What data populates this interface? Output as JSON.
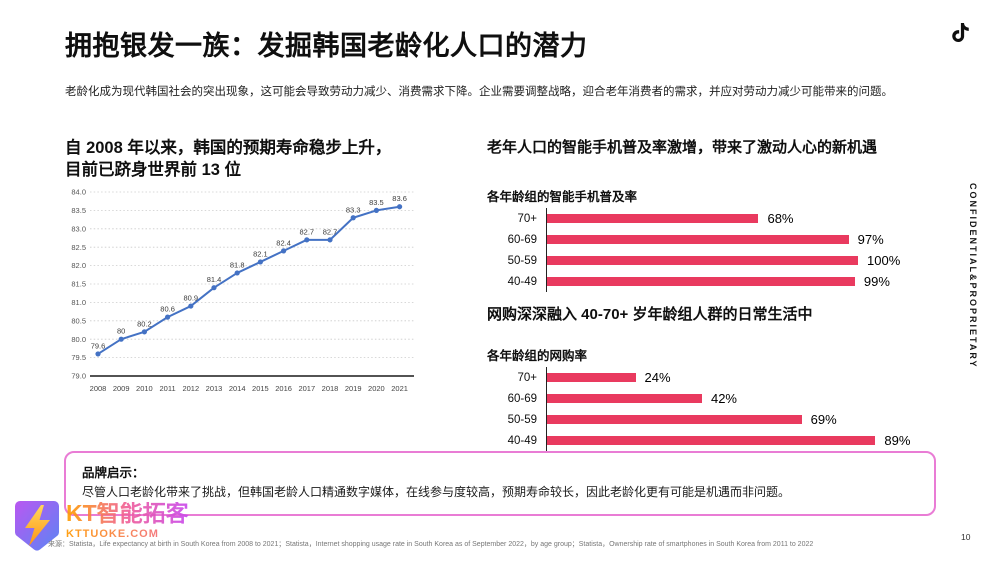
{
  "header": {
    "title": "拥抱银发一族：发掘韩国老龄化人口的潜力",
    "subtitle": "老龄化成为现代韩国社会的突出现象，这可能会导致劳动力减少、消费需求下降。企业需要调整战略，迎合老年消费者的需求，并应对劳动力减少可能带来的问题。"
  },
  "top_right": {
    "confidential": "CONFIDENTIAL&PROPRIETARY"
  },
  "left_section": {
    "title": "自 2008 年以来，韩国的预期寿命稳步上升，\n目前已跻身世界前 13 位"
  },
  "right_section": {
    "smartphone_title": "老年人口的智能手机普及率激增，带来了激动人心的新机遇",
    "smartphone_chart_label": "各年龄组的智能手机普及率",
    "shopping_title": "网购深深融入 40-70+ 岁年龄组人群的日常生活中",
    "shopping_chart_label": "各年龄组的网购率"
  },
  "callout": {
    "label": "品牌启示：",
    "text": "尽管人口老龄化带来了挑战，但韩国老龄人口精通数字媒体，在线参与度较高，预期寿命较长，因此老龄化更有可能是机遇而非问题。"
  },
  "footer": {
    "source": "来源：Statista，Life expectancy at birth in South Korea from 2008 to 2021；Statista，Internet shopping usage rate in South Korea as of September 2022，by age group；Statista，Ownership rate of smartphones in South Korea from 2011 to 2022",
    "page": "10",
    "logo_title": "KT智能拓客",
    "logo_domain": "KTTUOKE.COM"
  },
  "colors": {
    "bar": "#E93A5F",
    "line": "#4472C4",
    "callout_border": "#E97CD5",
    "grid": "#CBCBCB",
    "axis": "#1A1A1A"
  },
  "chart_data": [
    {
      "type": "line",
      "title": "自 2008 年以来，韩国的预期寿命稳步上升，目前已跻身世界前 13 位",
      "x": [
        "2008",
        "2009",
        "2010",
        "2011",
        "2012",
        "2013",
        "2014",
        "2015",
        "2016",
        "2017",
        "2018",
        "2019",
        "2020",
        "2021"
      ],
      "values": [
        79.6,
        80,
        80.2,
        80.6,
        80.9,
        81.4,
        81.8,
        82.1,
        82.4,
        82.7,
        82.7,
        83.3,
        83.5,
        83.6
      ],
      "xlabel": "",
      "ylabel": "",
      "ylim": [
        79.0,
        84.0
      ],
      "ytick_step": 0.5,
      "grid": true,
      "data_labels": true,
      "line_color": "#4472C4"
    },
    {
      "type": "bar",
      "orientation": "horizontal",
      "title": "各年龄组的智能手机普及率",
      "categories": [
        "70+",
        "60-69",
        "50-59",
        "40-49"
      ],
      "values": [
        68,
        97,
        100,
        99
      ],
      "unit": "%",
      "xlim": [
        0,
        100
      ],
      "bar_color": "#E93A5F"
    },
    {
      "type": "bar",
      "orientation": "horizontal",
      "title": "各年龄组的网购率",
      "categories": [
        "70+",
        "60-69",
        "50-59",
        "40-49"
      ],
      "values": [
        24,
        42,
        69,
        89
      ],
      "unit": "%",
      "xlim": [
        0,
        100
      ],
      "bar_color": "#E93A5F"
    }
  ]
}
